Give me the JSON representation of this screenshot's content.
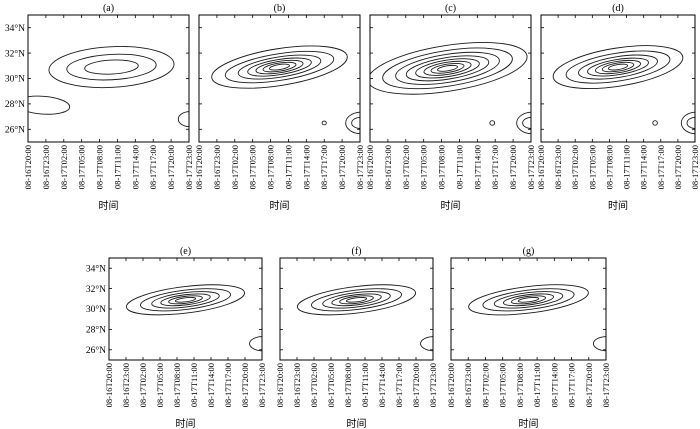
{
  "chart_data": {
    "type": "contour",
    "panel_labels": [
      "(a)",
      "(b)",
      "(c)",
      "(d)",
      "(e)",
      "(f)",
      "(g)"
    ],
    "xlabel": "时间",
    "x_ticks": [
      "08-16T20:00",
      "08-16T23:00",
      "08-17T02:00",
      "08-17T05:00",
      "08-17T08:00",
      "08-17T11:00",
      "08-17T14:00",
      "08-17T17:00",
      "08-17T20:00",
      "08-17T23:00"
    ],
    "y_ticks": [
      "26°N",
      "28°N",
      "30°N",
      "32°N",
      "34°N"
    ],
    "y_tick_values": [
      26,
      28,
      30,
      32,
      34
    ],
    "ylim": [
      25,
      35
    ],
    "xlim": [
      0,
      27
    ],
    "contour_color": "#1a1a1a",
    "panels": [
      {
        "label": "(a)",
        "contours": [
          {
            "center": [
              14,
              30.9
            ],
            "radii": [
              [
                10.5,
                1.6
              ],
              [
                7.5,
                1.0
              ],
              [
                4.5,
                0.55
              ]
            ],
            "tilt": -3
          },
          {
            "center": [
              2.5,
              27.9
            ],
            "radii": [
              [
                4.5,
                0.7
              ]
            ],
            "tilt": 4
          },
          {
            "center": [
              27.2,
              26.8
            ],
            "radii": [
              [
                2.0,
                0.6
              ]
            ],
            "tilt": 0
          }
        ]
      },
      {
        "label": "(b)",
        "contours": [
          {
            "center": [
              13.5,
              30.9
            ],
            "radii": [
              [
                11.5,
                1.45
              ],
              [
                9.2,
                1.05
              ],
              [
                7.0,
                0.8
              ],
              [
                5.4,
                0.6
              ],
              [
                4.0,
                0.45
              ],
              [
                2.8,
                0.32
              ],
              [
                1.7,
                0.2
              ]
            ],
            "tilt": -9
          },
          {
            "center": [
              27.2,
              26.5
            ],
            "radii": [
              [
                2.6,
                0.85
              ],
              [
                1.6,
                0.45
              ]
            ],
            "tilt": 0
          },
          {
            "center": [
              21.0,
              26.5
            ],
            "radii": [
              [
                0.35,
                0.15
              ]
            ],
            "tilt": 0
          }
        ]
      },
      {
        "label": "(c)",
        "contours": [
          {
            "center": [
              13.0,
              30.8
            ],
            "radii": [
              [
                13.5,
                1.8
              ],
              [
                11.0,
                1.4
              ],
              [
                8.8,
                1.1
              ],
              [
                7.0,
                0.85
              ],
              [
                5.4,
                0.65
              ],
              [
                4.0,
                0.48
              ],
              [
                2.8,
                0.33
              ],
              [
                1.7,
                0.2
              ]
            ],
            "tilt": -9
          },
          {
            "center": [
              27.2,
              26.5
            ],
            "radii": [
              [
                2.6,
                0.85
              ],
              [
                1.6,
                0.45
              ]
            ],
            "tilt": 0
          },
          {
            "center": [
              20.5,
              26.5
            ],
            "radii": [
              [
                0.4,
                0.18
              ]
            ],
            "tilt": 0
          }
        ]
      },
      {
        "label": "(d)",
        "contours": [
          {
            "center": [
              13.5,
              30.9
            ],
            "radii": [
              [
                11.5,
                1.5
              ],
              [
                9.2,
                1.1
              ],
              [
                7.0,
                0.82
              ],
              [
                5.4,
                0.6
              ],
              [
                4.0,
                0.45
              ],
              [
                2.8,
                0.32
              ],
              [
                1.7,
                0.2
              ]
            ],
            "tilt": -9
          },
          {
            "center": [
              27.2,
              26.5
            ],
            "radii": [
              [
                2.6,
                0.85
              ],
              [
                1.6,
                0.45
              ]
            ],
            "tilt": 0
          },
          {
            "center": [
              20.0,
              26.5
            ],
            "radii": [
              [
                0.4,
                0.18
              ]
            ],
            "tilt": 0
          }
        ]
      },
      {
        "label": "(e)",
        "contours": [
          {
            "center": [
              13.5,
              30.9
            ],
            "radii": [
              [
                10.5,
                1.3
              ],
              [
                8.0,
                0.95
              ],
              [
                6.0,
                0.7
              ],
              [
                4.4,
                0.5
              ],
              [
                3.0,
                0.34
              ],
              [
                1.8,
                0.2
              ]
            ],
            "tilt": -7
          },
          {
            "center": [
              27.2,
              26.6
            ],
            "radii": [
              [
                2.4,
                0.7
              ]
            ],
            "tilt": 0
          }
        ]
      },
      {
        "label": "(f)",
        "contours": [
          {
            "center": [
              13.5,
              30.9
            ],
            "radii": [
              [
                10.5,
                1.3
              ],
              [
                8.0,
                0.95
              ],
              [
                6.0,
                0.7
              ],
              [
                4.4,
                0.5
              ],
              [
                3.0,
                0.34
              ],
              [
                1.8,
                0.2
              ]
            ],
            "tilt": -7
          },
          {
            "center": [
              27.2,
              26.6
            ],
            "radii": [
              [
                2.4,
                0.7
              ]
            ],
            "tilt": 0
          }
        ]
      },
      {
        "label": "(g)",
        "contours": [
          {
            "center": [
              13.5,
              30.9
            ],
            "radii": [
              [
                10.5,
                1.3
              ],
              [
                8.0,
                0.95
              ],
              [
                6.0,
                0.7
              ],
              [
                4.4,
                0.5
              ],
              [
                3.0,
                0.34
              ],
              [
                1.8,
                0.2
              ]
            ],
            "tilt": -7
          },
          {
            "center": [
              27.2,
              26.6
            ],
            "radii": [
              [
                2.4,
                0.7
              ]
            ],
            "tilt": 0
          }
        ]
      }
    ]
  }
}
